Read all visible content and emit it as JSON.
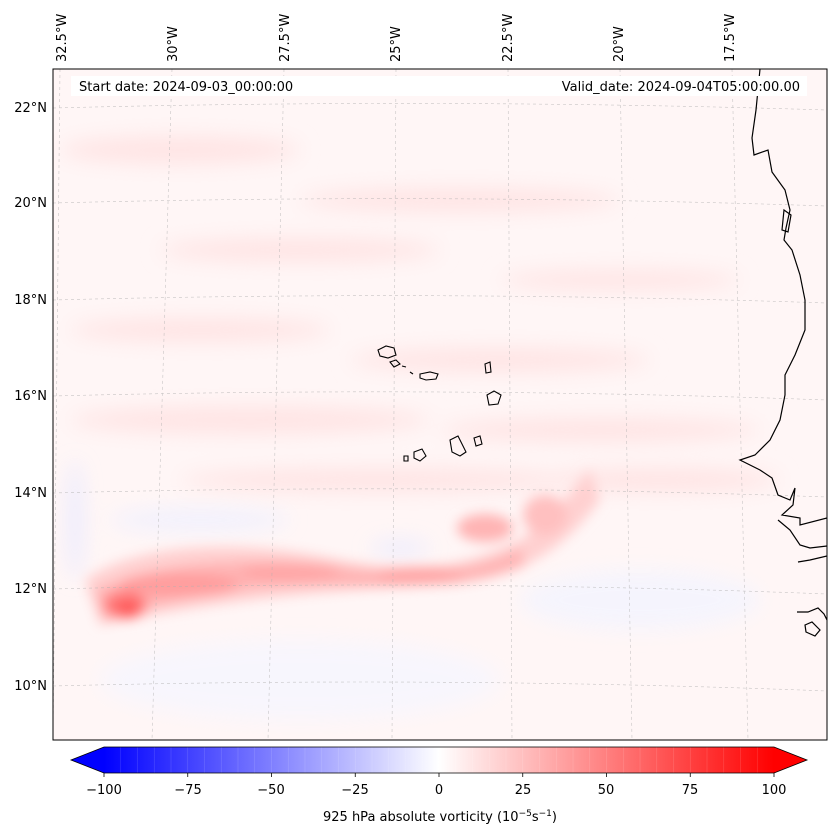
{
  "header": {
    "start_date": "Start date: 2024-09-03_00:00:00",
    "valid_date": "Valid_date: 2024-09-04T05:00:00.00"
  },
  "axes": {
    "lon_labels": [
      "32.5°W",
      "30°W",
      "27.5°W",
      "25°W",
      "22.5°W",
      "20°W",
      "17.5°W"
    ],
    "lat_labels": [
      "22°N",
      "20°N",
      "18°N",
      "16°N",
      "14°N",
      "12°N",
      "10°N"
    ]
  },
  "colorbar": {
    "tick_labels": [
      "−100",
      "−75",
      "−50",
      "−25",
      "0",
      "25",
      "50",
      "75",
      "100"
    ],
    "label": "925 hPa absolute vorticity (10",
    "label_exp1": "−5",
    "label_mid": "s",
    "label_exp2": "−1",
    "label_end": ")",
    "range": [
      -100,
      100
    ],
    "colors": {
      "min": "#0000ff",
      "zero": "#ffffff",
      "max": "#ff0000"
    }
  },
  "chart_data": {
    "type": "heatmap",
    "title": "",
    "variable": "925 hPa absolute vorticity",
    "units": "1e-5 s^-1",
    "start_date": "2024-09-03_00:00:00",
    "valid_date": "2024-09-04T05:00:00.00",
    "lon_range": [
      -33.0,
      -15.5
    ],
    "lat_range": [
      9.0,
      22.8
    ],
    "lon_ticks": [
      -32.5,
      -30,
      -27.5,
      -25,
      -22.5,
      -20,
      -17.5
    ],
    "lat_ticks": [
      22,
      20,
      18,
      16,
      14,
      12,
      10
    ],
    "features": [
      {
        "name": "vorticity maximum",
        "lon": -31.0,
        "lat": 11.6,
        "value": 60
      },
      {
        "name": "vorticity band",
        "lon_start": -32,
        "lon_end": -22,
        "lat_mean": 12.2,
        "value": 30
      },
      {
        "name": "secondary maximum",
        "lon": -22.3,
        "lat": 13.2,
        "value": 30
      }
    ]
  }
}
